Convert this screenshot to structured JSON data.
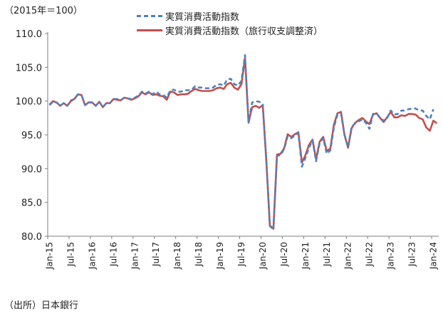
{
  "chart_data": {
    "type": "line",
    "unit_label": "（2015年＝100）",
    "source": "（出所）日本銀行",
    "ylim": [
      80,
      110
    ],
    "yticks": [
      "80.0",
      "85.0",
      "90.0",
      "95.0",
      "100.0",
      "105.0",
      "110.0"
    ],
    "ytick_values": [
      80,
      85,
      90,
      95,
      100,
      105,
      110
    ],
    "xticks": [
      "Jan-15",
      "Jul-15",
      "Jan-16",
      "Jul-16",
      "Jan-17",
      "Jul-17",
      "Jan-18",
      "Jul-18",
      "Jan-19",
      "Jul-19",
      "Jan-20",
      "Jul-20",
      "Jan-21",
      "Jul-21",
      "Jan-22",
      "Jul-22",
      "Jan-23",
      "Jul-23",
      "Jan-24"
    ],
    "x_start": "2015-01",
    "x_end": "2024-04",
    "grid": false,
    "legend_position": "top-center",
    "colors": {
      "series1": "#4f81bd",
      "series2": "#c0504d",
      "axis": "#7f7f7f"
    },
    "series": [
      {
        "name": "実質消費活動指数",
        "style": "dashed",
        "values": [
          99.4,
          99.9,
          99.8,
          99.3,
          99.7,
          99.3,
          100.1,
          100.3,
          101.0,
          100.9,
          99.4,
          99.8,
          99.8,
          99.3,
          99.9,
          99.1,
          99.7,
          99.7,
          100.3,
          100.3,
          100.1,
          100.5,
          100.4,
          100.3,
          100.5,
          100.8,
          101.4,
          101.1,
          101.4,
          101.0,
          101.4,
          101.0,
          100.9,
          100.5,
          101.6,
          101.7,
          101.4,
          101.4,
          101.6,
          101.6,
          101.7,
          102.2,
          102.0,
          102.0,
          101.9,
          101.9,
          102.0,
          102.4,
          102.5,
          102.3,
          103.2,
          103.3,
          102.5,
          102.3,
          103.0,
          106.8,
          96.9,
          99.8,
          100.0,
          99.9,
          99.6,
          91.4,
          81.5,
          81.0,
          91.9,
          92.0,
          92.9,
          94.8,
          94.5,
          94.9,
          95.3,
          90.3,
          91.6,
          93.1,
          94.2,
          91.1,
          93.8,
          94.5,
          92.2,
          92.7,
          96.1,
          98.0,
          98.2,
          95.0,
          93.2,
          96.2,
          96.7,
          97.0,
          97.3,
          96.8,
          95.9,
          98.1,
          98.2,
          97.5,
          97.1,
          97.5,
          98.6,
          98.0,
          98.1,
          98.6,
          98.6,
          98.8,
          98.9,
          98.9,
          98.6,
          98.6,
          97.8,
          97.3,
          98.8
        ],
        "values_note": "",
        "note": ""
      },
      {
        "name": "実質消費活動指数（旅行収支調整済）",
        "style": "solid",
        "values": [
          99.5,
          100.0,
          99.8,
          99.3,
          99.7,
          99.3,
          100.0,
          100.3,
          101.0,
          100.9,
          99.4,
          99.8,
          99.8,
          99.3,
          99.9,
          99.1,
          99.7,
          99.7,
          100.3,
          100.2,
          100.1,
          100.5,
          100.4,
          100.2,
          100.4,
          100.7,
          101.3,
          101.0,
          101.3,
          100.9,
          101.0,
          100.8,
          100.7,
          100.2,
          101.4,
          101.3,
          100.9,
          101.0,
          101.0,
          101.1,
          101.5,
          101.8,
          101.6,
          101.5,
          101.5,
          101.5,
          101.6,
          101.9,
          102.0,
          101.8,
          102.5,
          102.7,
          102.0,
          101.7,
          102.5,
          106.4,
          96.8,
          99.1,
          99.3,
          99.0,
          99.4,
          91.2,
          81.6,
          81.1,
          92.1,
          92.2,
          93.0,
          95.1,
          94.7,
          95.1,
          95.4,
          90.9,
          92.0,
          93.5,
          94.3,
          91.4,
          94.0,
          94.7,
          92.6,
          93.0,
          96.5,
          98.2,
          98.4,
          95.0,
          93.1,
          96.0,
          96.8,
          97.2,
          97.5,
          97.0,
          96.6,
          98.0,
          98.2,
          97.5,
          96.9,
          97.6,
          98.4,
          97.6,
          97.6,
          97.9,
          97.8,
          98.1,
          98.1,
          98.0,
          97.5,
          97.3,
          96.1,
          95.6,
          97.1,
          96.7
        ],
        "note": ""
      }
    ]
  }
}
